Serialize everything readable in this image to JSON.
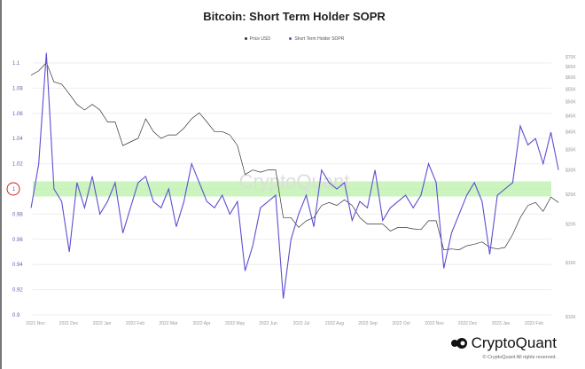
{
  "chart_data": {
    "type": "line",
    "title": "Bitcoin: Short Term Holder SOPR",
    "legend": [
      "Price USD",
      "Short Term Holder SOPR"
    ],
    "legend_placement": "top-center",
    "grid": true,
    "colors": {
      "price": "#333333",
      "sopr": "#5b4fd1",
      "band": "#b9f0a8",
      "marker": "#d22222"
    },
    "left_axis": {
      "ticks": [
        "1.1",
        "1.08",
        "1.06",
        "1.04",
        "1.02",
        "1",
        "0.98",
        "0.96",
        "0.94",
        "0.92",
        "0.9"
      ],
      "ylim": [
        0.9,
        1.11
      ]
    },
    "right_axis": {
      "scale": "log",
      "ticks": [
        "$70K",
        "$65K",
        "$60K",
        "$55K",
        "$50K",
        "$45K",
        "$40K",
        "$35K",
        "$30K",
        "$25K",
        "$20K",
        "$15K",
        "$10K"
      ],
      "ylim": [
        10000,
        70000
      ]
    },
    "x_ticks": [
      "2021 Nov",
      "2021 Dec",
      "2022 Jan",
      "2022 Feb",
      "2022 Mar",
      "2022 Apr",
      "2022 May",
      "2022 Jun",
      "2022 Jul",
      "2022 Aug",
      "2022 Sep",
      "2022 Oct",
      "2022 Nov",
      "2022 Dec",
      "2023 Jan",
      "2023 Feb"
    ],
    "highlight_band": [
      0.994,
      1.006
    ],
    "highlighted_tick": "1",
    "x": [
      "2021-10-28",
      "2021-11-04",
      "2021-11-11",
      "2021-11-18",
      "2021-11-25",
      "2021-12-02",
      "2021-12-09",
      "2021-12-16",
      "2021-12-23",
      "2021-12-30",
      "2022-01-06",
      "2022-01-13",
      "2022-01-20",
      "2022-01-27",
      "2022-02-03",
      "2022-02-10",
      "2022-02-17",
      "2022-02-24",
      "2022-03-03",
      "2022-03-10",
      "2022-03-17",
      "2022-03-24",
      "2022-03-31",
      "2022-04-07",
      "2022-04-14",
      "2022-04-21",
      "2022-04-28",
      "2022-05-05",
      "2022-05-12",
      "2022-05-19",
      "2022-05-26",
      "2022-06-02",
      "2022-06-09",
      "2022-06-16",
      "2022-06-23",
      "2022-06-30",
      "2022-07-07",
      "2022-07-14",
      "2022-07-21",
      "2022-07-28",
      "2022-08-04",
      "2022-08-11",
      "2022-08-18",
      "2022-08-25",
      "2022-09-01",
      "2022-09-08",
      "2022-09-15",
      "2022-09-22",
      "2022-09-29",
      "2022-10-06",
      "2022-10-13",
      "2022-10-20",
      "2022-10-27",
      "2022-11-03",
      "2022-11-10",
      "2022-11-17",
      "2022-11-24",
      "2022-12-01",
      "2022-12-08",
      "2022-12-15",
      "2022-12-22",
      "2022-12-29",
      "2023-01-05",
      "2023-01-12",
      "2023-01-19",
      "2023-01-26",
      "2023-02-02",
      "2023-02-09",
      "2023-02-16",
      "2023-02-23"
    ],
    "series": [
      {
        "name": "Price USD",
        "axis": "right",
        "values": [
          61000,
          63000,
          67000,
          58000,
          57000,
          53000,
          49000,
          47000,
          49000,
          47000,
          43000,
          43000,
          36000,
          37000,
          38000,
          44000,
          40000,
          38000,
          39000,
          39000,
          41000,
          44000,
          46000,
          43000,
          40000,
          40000,
          39000,
          36000,
          29000,
          30000,
          29500,
          30000,
          30000,
          21000,
          21000,
          19500,
          20500,
          21000,
          23000,
          23500,
          23000,
          24000,
          23000,
          21000,
          20000,
          20000,
          20000,
          19000,
          19500,
          19500,
          19300,
          19200,
          20500,
          20500,
          16500,
          16600,
          16500,
          17000,
          17200,
          17500,
          16800,
          16600,
          16800,
          18500,
          21000,
          23000,
          23500,
          22000,
          24500,
          23500
        ]
      },
      {
        "name": "Short Term Holder SOPR",
        "axis": "left",
        "values": [
          0.985,
          1.02,
          1.108,
          1.0,
          0.99,
          0.95,
          1.005,
          0.985,
          1.01,
          0.98,
          0.99,
          1.005,
          0.965,
          0.985,
          1.005,
          1.01,
          0.99,
          0.985,
          1.0,
          0.97,
          0.99,
          1.02,
          1.005,
          0.99,
          0.985,
          0.995,
          0.98,
          0.99,
          0.935,
          0.955,
          0.985,
          0.99,
          0.995,
          0.913,
          0.96,
          0.98,
          0.995,
          0.97,
          1.015,
          1.005,
          1.0,
          1.005,
          0.975,
          0.99,
          0.985,
          1.015,
          0.975,
          0.985,
          0.99,
          0.995,
          0.985,
          0.995,
          1.02,
          1.005,
          0.937,
          0.965,
          0.98,
          0.995,
          1.005,
          0.99,
          0.948,
          0.995,
          1.0,
          1.005,
          1.05,
          1.035,
          1.04,
          1.02,
          1.045,
          1.015
        ]
      }
    ]
  },
  "watermark": "CryptoQuant",
  "footer": {
    "brand": "CryptoQuant",
    "copyright": "© CryptoQuant All rights reserved."
  }
}
